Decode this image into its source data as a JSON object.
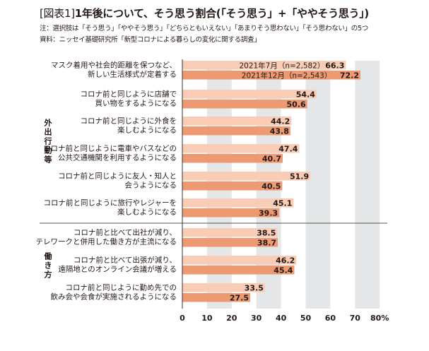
{
  "header": {
    "tag": "[図表1]",
    "title": "1年後について、そう思う割合(「そう思う」+「ややそう思う」)",
    "note": "注：選択肢は「そう思う」「ややそう思う」「どちらともいえない」「あまりそう思わない」「そう思わない」の5つ",
    "source": "資料：ニッセイ基礎研究所「新型コロナによる暮らしの変化に関する調査」"
  },
  "colors": {
    "series1": "#f9cdb5",
    "series2": "#ed9a72",
    "grid_band": "#e4e6e8",
    "text": "#231815"
  },
  "chart_data": {
    "type": "bar",
    "orientation": "horizontal",
    "series": [
      {
        "name": "2021年7月（n=2,582）",
        "values": [
          66.3,
          54.4,
          44.2,
          47.4,
          51.9,
          45.1,
          38.5,
          46.2,
          33.5
        ]
      },
      {
        "name": "2021年12月（n=2,543）",
        "values": [
          72.2,
          50.6,
          43.8,
          40.7,
          40.5,
          39.3,
          38.7,
          45.4,
          27.5
        ]
      }
    ],
    "categories": [
      [
        "マスク着用や社会的距離を保つなど、",
        "新しい生活様式が定着する"
      ],
      [
        "コロナ前と同じように店舗で",
        "買い物をするようになる"
      ],
      [
        "コロナ前と同じように外食を",
        "楽しむようになる"
      ],
      [
        "コロナ前と同じように電車やバスなどの",
        "公共交通機関を利用するようになる"
      ],
      [
        "コロナ前と同じように友人・知人と",
        "会うようになる"
      ],
      [
        "コロナ前と同じように旅行やレジャーを",
        "楽しむようになる"
      ],
      [
        "コロナ前と比べて出社が減り、",
        "テレワークと併用した働き方が主流になる"
      ],
      [
        "コロナ前と比べて出張が減り、",
        "遠隔地とのオンライン会議が増える"
      ],
      [
        "コロナ前と同じように勤め先での",
        "飲み会や会食が実施されるようになる"
      ]
    ],
    "groups": [
      {
        "label": "外出行動等",
        "start": 1,
        "end": 5
      },
      {
        "label": "働き方",
        "start": 6,
        "end": 8
      }
    ],
    "xlim": [
      0,
      80
    ],
    "xticks": [
      0,
      10,
      20,
      30,
      40,
      50,
      60,
      70,
      80
    ],
    "tick_labels": [
      "0",
      "10",
      "20",
      "30",
      "40",
      "50",
      "60",
      "70",
      "80"
    ],
    "unit": "%",
    "legend_position": "inside-top"
  }
}
